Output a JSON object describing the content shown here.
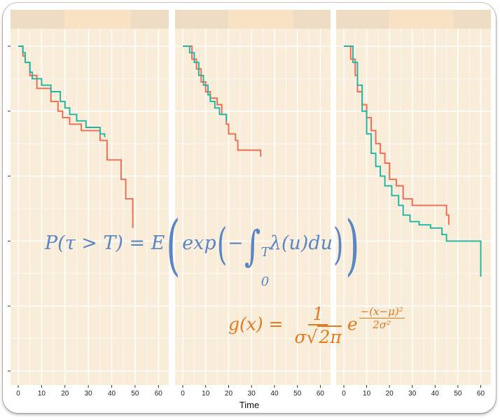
{
  "chart_data": {
    "type": "line",
    "step": true,
    "xlabel": "Time",
    "x_ticks": [
      0,
      10,
      20,
      30,
      40,
      50,
      60
    ],
    "xlim": [
      0,
      62
    ],
    "ylim": [
      0,
      1
    ],
    "y_ticks": [
      0.0,
      0.2,
      0.4,
      0.6,
      0.8,
      1.0
    ],
    "y_tick_labels_visible": false,
    "grid": true,
    "legend": "none",
    "facet_strips": [
      "",
      "",
      ""
    ],
    "colors": {
      "series_a": "#ee6b52",
      "series_b": "#1fb5a4",
      "panel_bg": "#f9ecd9",
      "strip_bg": "#eddbc3"
    },
    "panels": [
      {
        "series": [
          {
            "color": "#ee6b52",
            "x": [
              0,
              2,
              3,
              5,
              8,
              14,
              17,
              19,
              22,
              27,
              35,
              38,
              44,
              46,
              49
            ],
            "y": [
              1.0,
              0.97,
              0.95,
              0.91,
              0.87,
              0.83,
              0.8,
              0.78,
              0.76,
              0.74,
              0.71,
              0.65,
              0.59,
              0.53,
              0.44
            ]
          },
          {
            "color": "#1fb5a4",
            "x": [
              0,
              2,
              3,
              5,
              6,
              10,
              14,
              18,
              20,
              22,
              25,
              29,
              35,
              37
            ],
            "y": [
              1.0,
              0.98,
              0.95,
              0.92,
              0.9,
              0.88,
              0.86,
              0.83,
              0.81,
              0.79,
              0.77,
              0.75,
              0.73,
              0.72
            ]
          }
        ]
      },
      {
        "series": [
          {
            "color": "#ee6b52",
            "x": [
              0,
              4,
              6,
              8,
              10,
              12,
              15,
              17,
              19,
              20,
              23,
              24,
              34
            ],
            "y": [
              1.0,
              0.96,
              0.93,
              0.89,
              0.86,
              0.84,
              0.82,
              0.79,
              0.76,
              0.73,
              0.71,
              0.68,
              0.66
            ]
          },
          {
            "color": "#1fb5a4",
            "x": [
              0,
              3,
              5,
              7,
              9,
              11,
              12,
              14,
              16,
              19
            ],
            "y": [
              1.0,
              0.98,
              0.95,
              0.91,
              0.88,
              0.85,
              0.83,
              0.81,
              0.79,
              0.77
            ]
          }
        ]
      },
      {
        "series": [
          {
            "color": "#ee6b52",
            "x": [
              0,
              3,
              5,
              6,
              8,
              10,
              12,
              14,
              16,
              18,
              20,
              23,
              26,
              30,
              45,
              46
            ],
            "y": [
              1.0,
              0.96,
              0.91,
              0.86,
              0.82,
              0.78,
              0.74,
              0.7,
              0.67,
              0.64,
              0.59,
              0.57,
              0.53,
              0.51,
              0.48,
              0.45
            ]
          },
          {
            "color": "#1fb5a4",
            "x": [
              0,
              4,
              6,
              8,
              10,
              12,
              14,
              16,
              18,
              21,
              24,
              26,
              29,
              33,
              38,
              43,
              45,
              60
            ],
            "y": [
              1.0,
              0.95,
              0.88,
              0.8,
              0.73,
              0.67,
              0.63,
              0.6,
              0.57,
              0.54,
              0.51,
              0.48,
              0.46,
              0.45,
              0.44,
              0.42,
              0.4,
              0.29
            ]
          }
        ]
      }
    ]
  },
  "equations": {
    "survival": {
      "lhs": "P(τ > T) = E",
      "exp": "exp",
      "minus": "−",
      "integral": "∫",
      "upper": "T",
      "lower": "0",
      "integrand": "λ(u)du"
    },
    "gauss": {
      "lhs": "g(x) =",
      "num": "1",
      "den_sigma": "σ",
      "den_sqrt": "2π",
      "base": "e",
      "exp_minus": "−",
      "exp_num": "(x−μ)²",
      "exp_den": "2σ²"
    }
  }
}
